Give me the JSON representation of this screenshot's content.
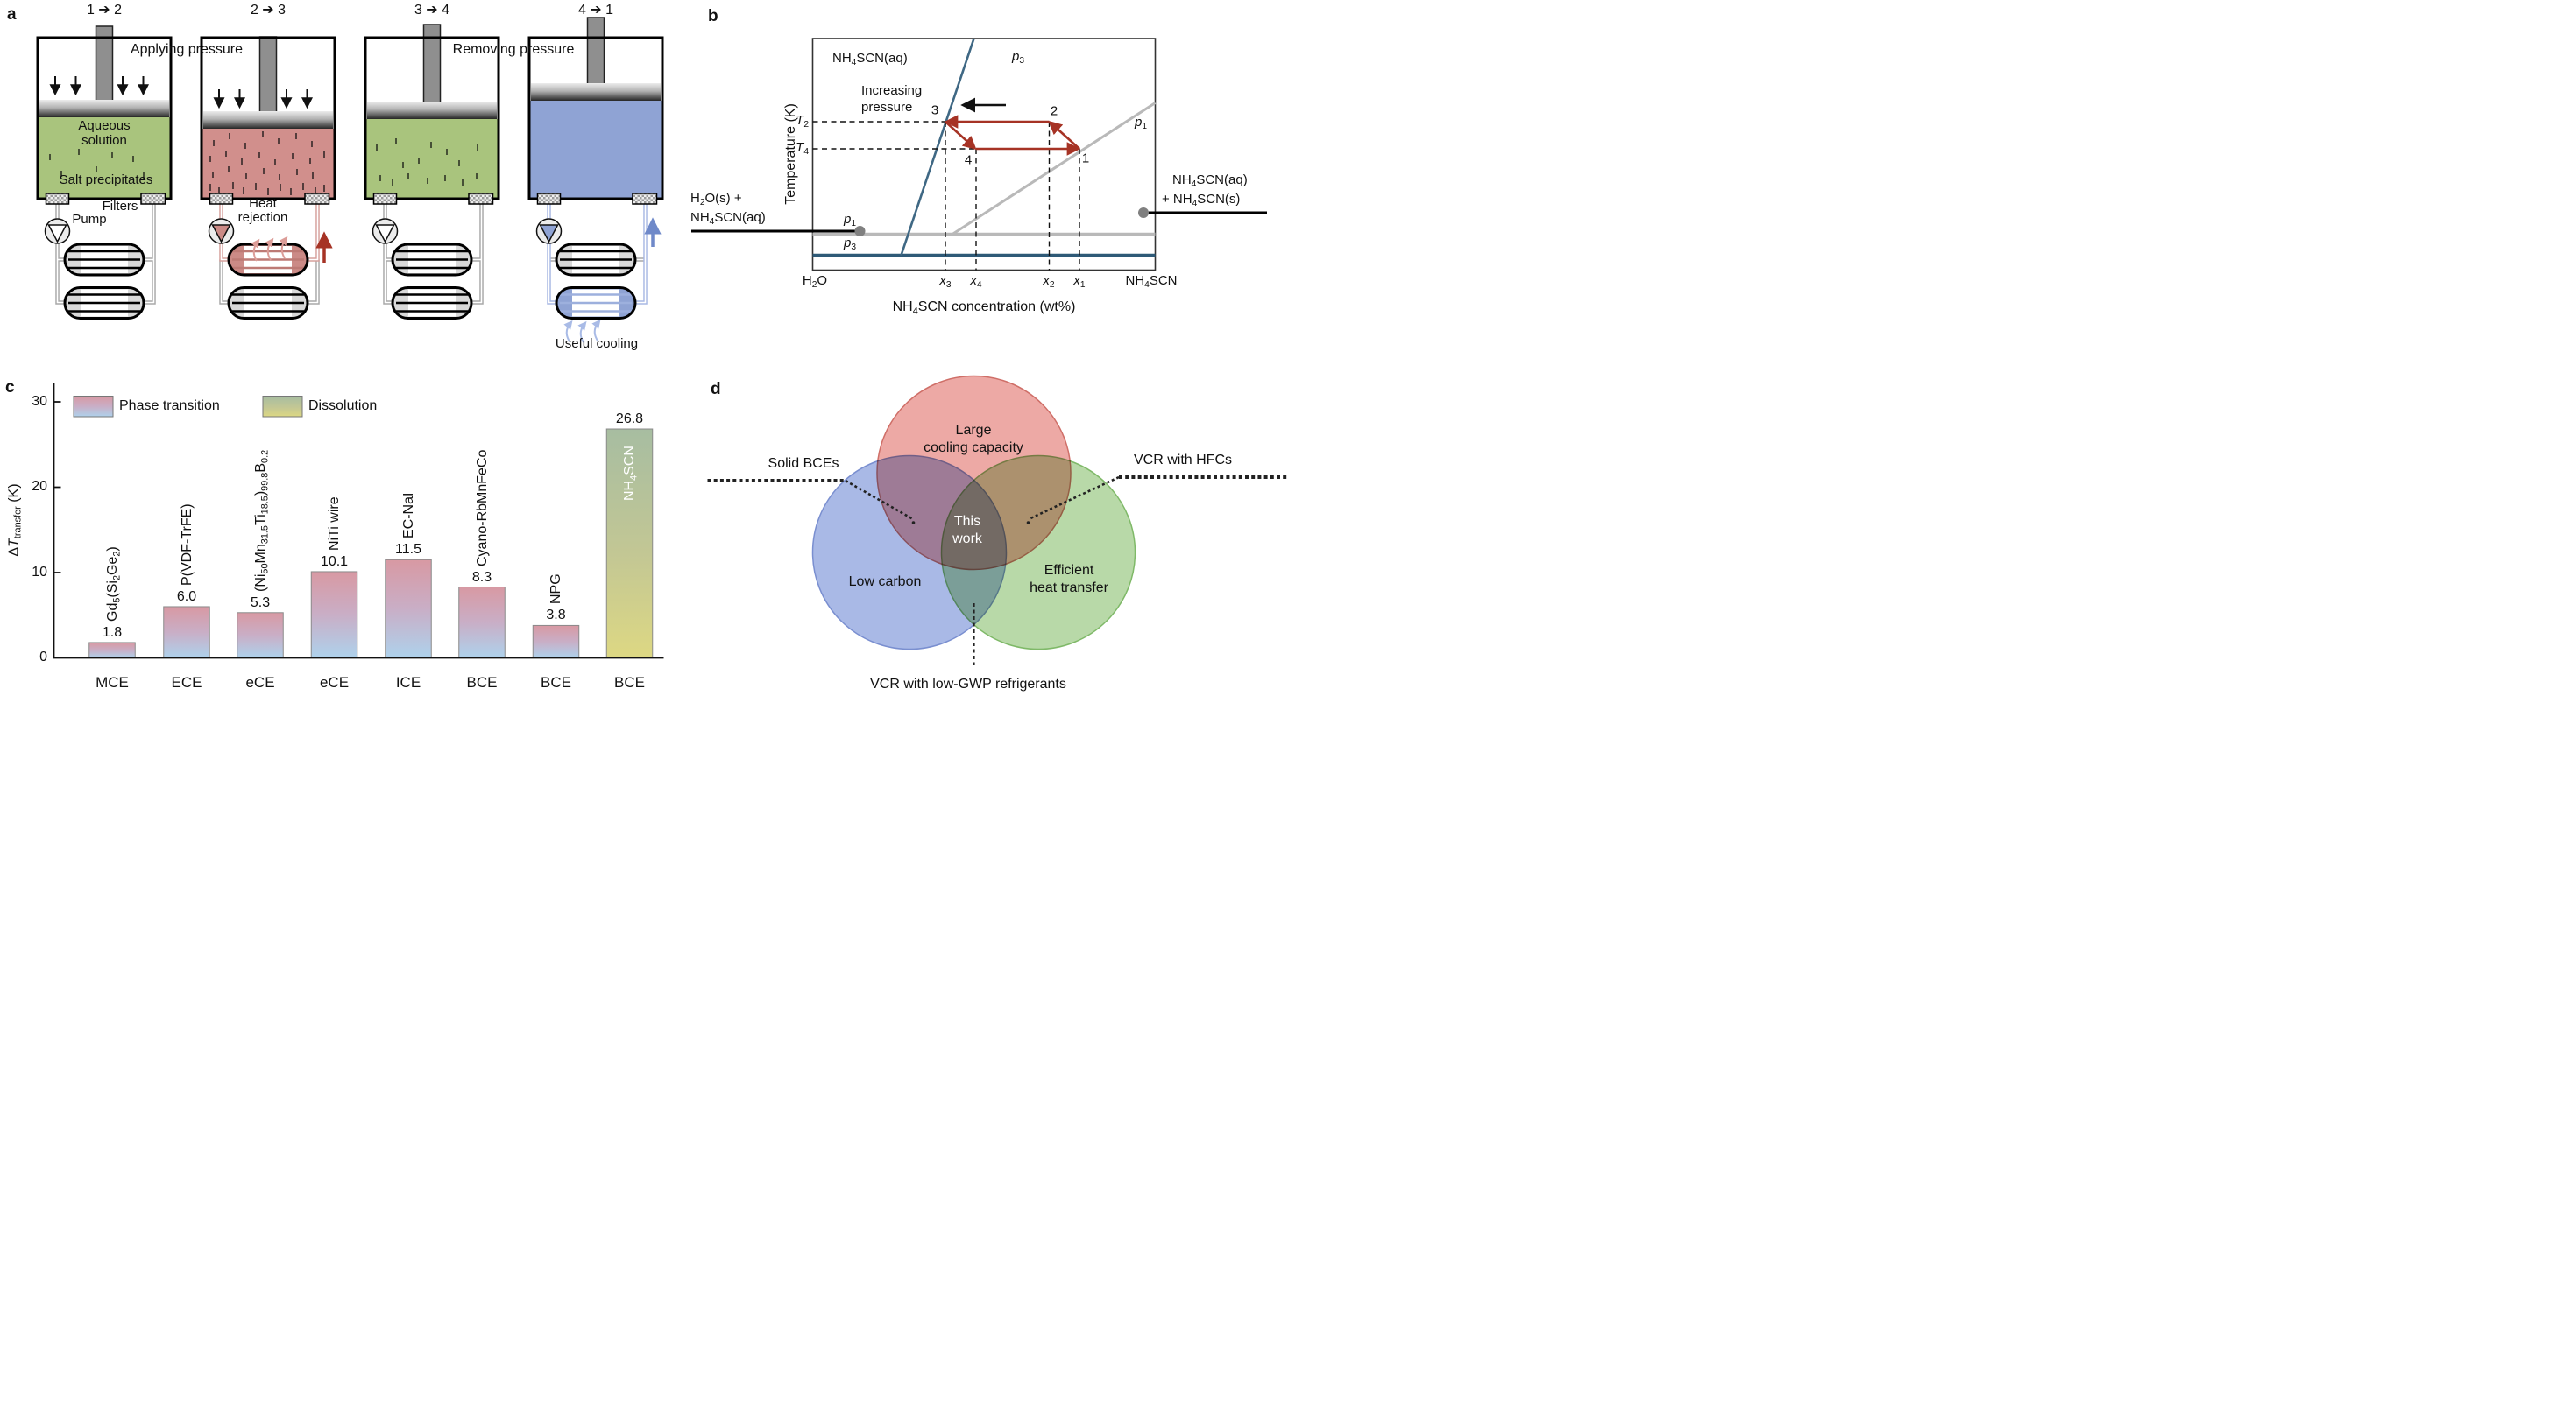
{
  "panel_a": {
    "label": "a",
    "steps": [
      "1 ➔ 2",
      "2 ➔ 3",
      "3 ➔ 4",
      "4 ➔ 1"
    ],
    "applying_pressure": "Applying pressure",
    "removing_pressure": "Removing pressure",
    "aqueous_solution": [
      "Aqueous",
      "solution"
    ],
    "salt_precipitates": "Salt precipitates",
    "filters_label": "Filters",
    "pump_label": "Pump",
    "heat_rejection": [
      "Heat",
      "rejection"
    ],
    "useful_cooling": "Useful cooling",
    "colors": {
      "solution_green": "#a9c47d",
      "solution_pink": "#d18f8c",
      "solution_blue": "#8fa3d4",
      "heat_red": "#a63325",
      "cool_blue": "#6f89c9"
    }
  },
  "panel_b": {
    "label": "b",
    "y_axis_label": "Temperature (K)",
    "x_axis_label_html": "NH<sub>4</sub>SCN concentration (wt%)",
    "region_label_html": "NH<sub>4</sub>SCN(aq)",
    "increasing_pressure": [
      "Increasing",
      "pressure"
    ],
    "p3_html": "<i>p</i><sub>3</sub>",
    "p1_html": "<i>p</i><sub>1</sub>",
    "T2_html": "<i>T</i><sub>2</sub>",
    "T4_html": "<i>T</i><sub>4</sub>",
    "x3_html": "<i>x</i><sub>3</sub>",
    "x4_html": "<i>x</i><sub>4</sub>",
    "x2_html": "<i>x</i><sub>2</sub>",
    "x1_html": "<i>x</i><sub>1</sub>",
    "x_left_html": "H<sub>2</sub>O",
    "x_right_html": "NH<sub>4</sub>SCN",
    "left_annotation_html": [
      "H<sub>2</sub>O(s) +",
      "NH<sub>4</sub>SCN(aq)"
    ],
    "right_annotation_html": [
      "NH<sub>4</sub>SCN(aq)",
      "+ NH<sub>4</sub>SCN(s)"
    ],
    "points": [
      "1",
      "2",
      "3",
      "4"
    ],
    "colors": {
      "phase_line_blue": "#3f6884",
      "phase_line_gray": "#b9b9b9",
      "cycle_red": "#a63325"
    }
  },
  "panel_c_label": "c",
  "chart_data": {
    "type": "bar",
    "categories": [
      "MCE",
      "ECE",
      "eCE",
      "eCE",
      "ICE",
      "BCE",
      "BCE",
      "BCE"
    ],
    "values": [
      1.8,
      6.0,
      5.3,
      10.1,
      11.5,
      8.3,
      3.8,
      26.8
    ],
    "value_labels": [
      "1.8",
      "6.0",
      "5.3",
      "10.1",
      "11.5",
      "8.3",
      "3.8",
      "26.8"
    ],
    "materials_html": [
      "Gd<sub>5</sub>(Si<sub>2</sub>Ge<sub>2</sub>)",
      "P(VDF-TrFE)",
      "(Ni<sub>50</sub>Mn<sub>31.5</sub>Ti<sub>18.5</sub>)<sub>99.8</sub>B<sub>0.2</sub>",
      "NiTi wire",
      "EC-NaI",
      "Cyano-RbMnFeCo",
      "NPG",
      "NH<sub>4</sub>SCN"
    ],
    "dissolution_index": 7,
    "legend": [
      "Phase transition",
      "Dissolution"
    ],
    "ylabel_html": "Δ<i>T</i><sub>transfer</sub> (K)",
    "ytick_labels": [
      "0",
      "10",
      "20",
      "30"
    ],
    "ylim": [
      0,
      32
    ],
    "grid": false,
    "legend_position": "top-left",
    "gradient_phase": [
      "#d899a3",
      "#aed2ec"
    ],
    "gradient_dissolution": [
      "#a7bda1",
      "#ddd883"
    ]
  },
  "panel_d": {
    "label": "d",
    "circle_top": [
      "Large",
      "cooling capacity"
    ],
    "circle_left": "Low carbon",
    "circle_right": [
      "Efficient",
      "heat transfer"
    ],
    "center": [
      "This",
      "work"
    ],
    "annotation_left": "Solid BCEs",
    "annotation_right": "VCR with HFCs",
    "annotation_bottom": "VCR with low-GWP refrigerants",
    "colors": {
      "red": "#e9938e",
      "blue": "#93a7e0",
      "green": "#a6cf92"
    }
  }
}
